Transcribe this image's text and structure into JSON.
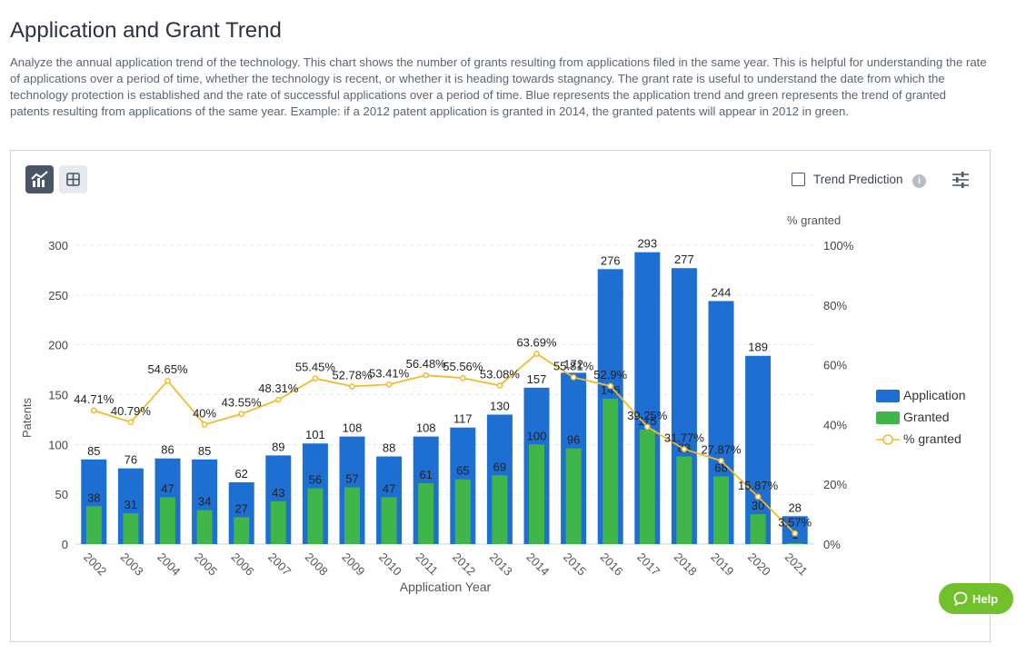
{
  "header": {
    "title": "Application and Grant Trend",
    "description": "Analyze the annual application trend of the technology. This chart shows the number of grants resulting from applications filed in the same year. This is helpful for understanding the rate of applications over a period of time, whether the technology is recent, or whether it is heading towards stagnancy. The grant rate is useful to understand the date from which the technology protection is established and the rate of successful applications over a period of time. Blue represents the application trend and green represents the trend of granted patents resulting from applications of the same year. Example: if a 2012 patent application is granted in 2014, the granted patents will appear in 2012 in green."
  },
  "toolbar": {
    "trend_prediction_label": "Trend Prediction",
    "chart_view_icon": "chart-line-bar-icon",
    "grid_view_icon": "grid-icon",
    "settings_icon": "sliders-icon",
    "info_icon": "info-icon",
    "info_glyph": "i"
  },
  "help": {
    "label": "Help",
    "icon": "chat-bubble-icon"
  },
  "colors": {
    "application": "#1e6fd2",
    "granted": "#3fb54a",
    "percent_line": "#f5b92a",
    "text": "#333333"
  },
  "chart_data": {
    "type": "bar",
    "title": "Application and Grant Trend",
    "xlabel": "Application Year",
    "ylabel": "Patents",
    "y2label": "% granted",
    "ylim": [
      0,
      300
    ],
    "y2lim": [
      0,
      100
    ],
    "yticks": [
      0,
      50,
      100,
      150,
      200,
      250,
      300
    ],
    "y2ticks": [
      "0%",
      "20%",
      "40%",
      "60%",
      "80%",
      "100%"
    ],
    "legend_position": "right",
    "categories": [
      "2002",
      "2003",
      "2004",
      "2005",
      "2006",
      "2007",
      "2008",
      "2009",
      "2010",
      "2011",
      "2012",
      "2013",
      "2014",
      "2015",
      "2016",
      "2017",
      "2018",
      "2019",
      "2020",
      "2021"
    ],
    "series": [
      {
        "name": "Application",
        "type": "bar",
        "values": [
          85,
          76,
          86,
          85,
          62,
          89,
          101,
          108,
          88,
          108,
          117,
          130,
          157,
          172,
          276,
          293,
          277,
          244,
          189,
          28
        ]
      },
      {
        "name": "Granted",
        "type": "bar",
        "values": [
          38,
          31,
          47,
          34,
          27,
          43,
          56,
          57,
          47,
          61,
          65,
          69,
          100,
          96,
          146,
          115,
          88,
          68,
          30,
          1
        ]
      },
      {
        "name": "% granted",
        "type": "line",
        "axis": "right",
        "values": [
          44.71,
          40.79,
          54.65,
          40,
          43.55,
          48.31,
          55.45,
          52.78,
          53.41,
          56.48,
          55.56,
          53.08,
          63.69,
          55.81,
          52.9,
          39.25,
          31.77,
          27.87,
          15.87,
          3.57
        ],
        "labels": [
          "44.71%",
          "40.79%",
          "54.65%",
          "40%",
          "43.55%",
          "48.31%",
          "55.45%",
          "52.78%",
          "53.41%",
          "56.48%",
          "55.56%",
          "53.08%",
          "63.69%",
          "55.81%",
          "52.9%",
          "39.25%",
          "31.77%",
          "27.87%",
          "15.87%",
          "3.57%"
        ]
      }
    ]
  }
}
